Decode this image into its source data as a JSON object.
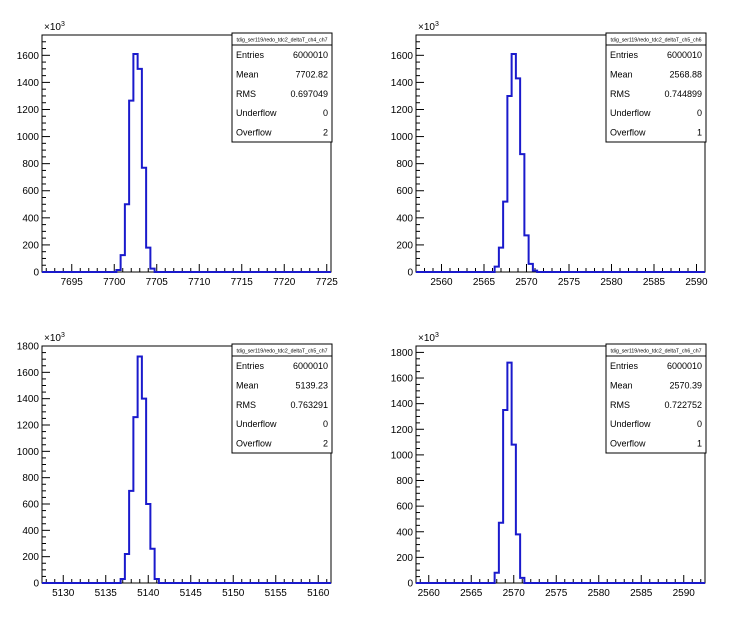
{
  "chart_data": [
    {
      "type": "bar",
      "histogram_title": "tdig_ser119/redo_tdc2_deltaT_ch4_ch7",
      "exponent_label": "×10",
      "exponent_power": "3",
      "x_ticks": [
        "7695",
        "7700",
        "7705",
        "7710",
        "7715",
        "7720",
        "7725"
      ],
      "y_ticks": [
        "0",
        "200",
        "400",
        "600",
        "800",
        "1000",
        "1200",
        "1400",
        "1600"
      ],
      "xlim": [
        7691.5,
        7725.5
      ],
      "ylim": [
        0,
        1750
      ],
      "grid": false,
      "legend": "top-right",
      "bins": [
        {
          "x": 7700.5,
          "value": 15
        },
        {
          "x": 7701.0,
          "value": 125
        },
        {
          "x": 7701.5,
          "value": 500
        },
        {
          "x": 7702.0,
          "value": 1265
        },
        {
          "x": 7702.5,
          "value": 1610
        },
        {
          "x": 7703.0,
          "value": 1500
        },
        {
          "x": 7703.5,
          "value": 770
        },
        {
          "x": 7704.0,
          "value": 180
        },
        {
          "x": 7704.5,
          "value": 25
        }
      ],
      "stats": [
        {
          "label": "Entries",
          "value": "6000010"
        },
        {
          "label": "Mean",
          "value": "7702.82"
        },
        {
          "label": "RMS",
          "value": "0.697049"
        },
        {
          "label": "Underflow",
          "value": "0"
        },
        {
          "label": "Overflow",
          "value": "2"
        }
      ]
    },
    {
      "type": "bar",
      "histogram_title": "tdig_ser119/redo_tdc2_deltaT_ch5_ch6",
      "exponent_label": "×10",
      "exponent_power": "3",
      "x_ticks": [
        "2560",
        "2565",
        "2570",
        "2575",
        "2580",
        "2585",
        "2590"
      ],
      "y_ticks": [
        "0",
        "200",
        "400",
        "600",
        "800",
        "1000",
        "1200",
        "1400",
        "1600"
      ],
      "xlim": [
        2557.0,
        2591.0
      ],
      "ylim": [
        0,
        1750
      ],
      "grid": false,
      "legend": "top-right",
      "bins": [
        {
          "x": 2566.5,
          "value": 40
        },
        {
          "x": 2567.0,
          "value": 180
        },
        {
          "x": 2567.5,
          "value": 520
        },
        {
          "x": 2568.0,
          "value": 1300
        },
        {
          "x": 2568.5,
          "value": 1610
        },
        {
          "x": 2569.0,
          "value": 1430
        },
        {
          "x": 2569.5,
          "value": 870
        },
        {
          "x": 2570.0,
          "value": 270
        },
        {
          "x": 2570.5,
          "value": 60
        },
        {
          "x": 2571.0,
          "value": 10
        }
      ],
      "stats": [
        {
          "label": "Entries",
          "value": "6000010"
        },
        {
          "label": "Mean",
          "value": "2568.88"
        },
        {
          "label": "RMS",
          "value": "0.744899"
        },
        {
          "label": "Underflow",
          "value": "0"
        },
        {
          "label": "Overflow",
          "value": "1"
        }
      ]
    },
    {
      "type": "bar",
      "histogram_title": "tdig_ser119/redo_tdc2_deltaT_ch5_ch7",
      "exponent_label": "×10",
      "exponent_power": "3",
      "x_ticks": [
        "5130",
        "5135",
        "5140",
        "5145",
        "5150",
        "5155",
        "5160"
      ],
      "y_ticks": [
        "0",
        "200",
        "400",
        "600",
        "800",
        "1000",
        "1200",
        "1400",
        "1600",
        "1800"
      ],
      "xlim": [
        5127.5,
        5161.5
      ],
      "ylim": [
        0,
        1800
      ],
      "grid": false,
      "legend": "top-right",
      "bins": [
        {
          "x": 5137.0,
          "value": 30
        },
        {
          "x": 5137.5,
          "value": 220
        },
        {
          "x": 5138.0,
          "value": 700
        },
        {
          "x": 5138.5,
          "value": 1260
        },
        {
          "x": 5139.0,
          "value": 1720
        },
        {
          "x": 5139.5,
          "value": 1400
        },
        {
          "x": 5140.0,
          "value": 600
        },
        {
          "x": 5140.5,
          "value": 260
        },
        {
          "x": 5141.0,
          "value": 30
        }
      ],
      "stats": [
        {
          "label": "Entries",
          "value": "6000010"
        },
        {
          "label": "Mean",
          "value": "5139.23"
        },
        {
          "label": "RMS",
          "value": "0.763291"
        },
        {
          "label": "Underflow",
          "value": "0"
        },
        {
          "label": "Overflow",
          "value": "2"
        }
      ]
    },
    {
      "type": "bar",
      "histogram_title": "tdig_ser119/redo_tdc2_deltaT_ch6_ch7",
      "exponent_label": "×10",
      "exponent_power": "3",
      "x_ticks": [
        "2560",
        "2565",
        "2570",
        "2575",
        "2580",
        "2585",
        "2590"
      ],
      "y_ticks": [
        "0",
        "200",
        "400",
        "600",
        "800",
        "1000",
        "1200",
        "1400",
        "1600",
        "1800"
      ],
      "xlim": [
        2558.5,
        2592.5
      ],
      "ylim": [
        0,
        1850
      ],
      "grid": false,
      "legend": "top-right",
      "bins": [
        {
          "x": 2568.0,
          "value": 80
        },
        {
          "x": 2568.5,
          "value": 470
        },
        {
          "x": 2569.0,
          "value": 1350
        },
        {
          "x": 2569.5,
          "value": 1720
        },
        {
          "x": 2570.0,
          "value": 1080
        },
        {
          "x": 2570.5,
          "value": 380
        },
        {
          "x": 2571.0,
          "value": 40
        }
      ],
      "stats": [
        {
          "label": "Entries",
          "value": "6000010"
        },
        {
          "label": "Mean",
          "value": "2570.39"
        },
        {
          "label": "RMS",
          "value": "0.722752"
        },
        {
          "label": "Underflow",
          "value": "0"
        },
        {
          "label": "Overflow",
          "value": "1"
        }
      ]
    }
  ]
}
